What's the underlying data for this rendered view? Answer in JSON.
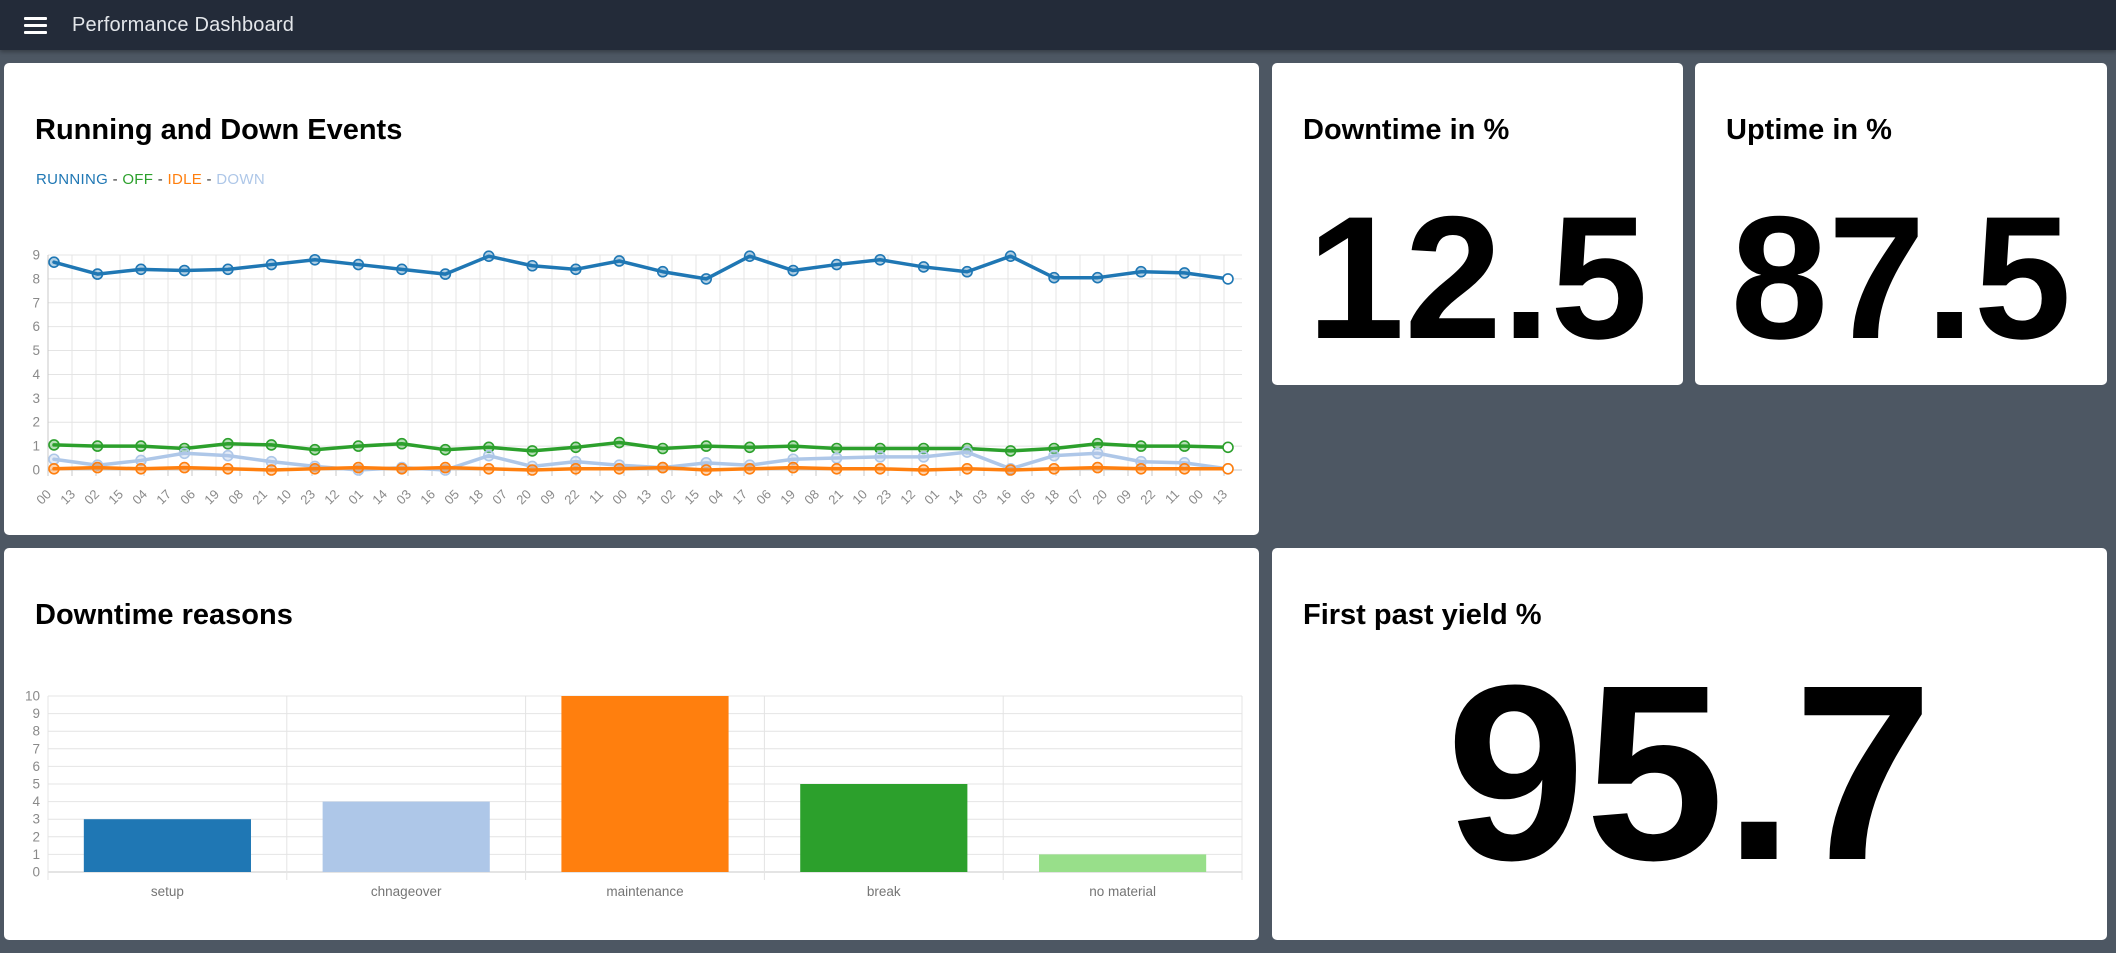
{
  "navbar": {
    "title": "Performance Dashboard",
    "menu_icon": "hamburger-icon"
  },
  "colors": {
    "background": "#4d5763",
    "navbar": "#232b39",
    "card": "#ffffff",
    "running": "#1f77b4",
    "off": "#2ca02c",
    "idle": "#ff7f0e",
    "down": "#aec7e8",
    "no_material": "#98df8a",
    "grid": "#e4e4e4",
    "axis": "#c8c8c8",
    "tick_label": "#8a8a8a",
    "category_label": "#757575"
  },
  "cards": {
    "events": {
      "title": "Running and Down Events"
    },
    "downtime": {
      "title": "Downtime in %",
      "value": "12.5"
    },
    "uptime": {
      "title": "Uptime in %",
      "value": "87.5"
    },
    "reasons": {
      "title": "Downtime reasons"
    },
    "fpy": {
      "title": "First past yield %",
      "value": "95.7"
    }
  },
  "legend": {
    "separator": " - ",
    "items": [
      {
        "label": "RUNNING",
        "color": "#1f77b4"
      },
      {
        "label": "OFF",
        "color": "#2ca02c"
      },
      {
        "label": "IDLE",
        "color": "#ff7f0e"
      },
      {
        "label": "DOWN",
        "color": "#aec7e8"
      }
    ]
  },
  "chart_data": [
    {
      "type": "line",
      "title": "Running and Down Events",
      "ylim": [
        0,
        9
      ],
      "y_ticks": [
        0,
        1,
        2,
        3,
        4,
        5,
        6,
        7,
        8,
        9
      ],
      "grid": true,
      "legend_position": "top",
      "x_tick_labels": [
        "00",
        "13",
        "02",
        "15",
        "04",
        "17",
        "06",
        "19",
        "08",
        "21",
        "10",
        "23",
        "12",
        "01",
        "14",
        "03",
        "16",
        "05",
        "18",
        "07",
        "20",
        "09",
        "22",
        "11",
        "00",
        "13",
        "02",
        "15",
        "04",
        "17",
        "06",
        "19",
        "08",
        "21",
        "10",
        "23",
        "12",
        "01",
        "14",
        "03",
        "16",
        "05",
        "18",
        "07",
        "20",
        "09",
        "22",
        "11",
        "00",
        "13"
      ],
      "series": [
        {
          "name": "RUNNING",
          "color": "#1f77b4",
          "values": [
            8.7,
            8.2,
            8.4,
            8.35,
            8.4,
            8.6,
            8.8,
            8.6,
            8.4,
            8.2,
            8.95,
            8.55,
            8.4,
            8.75,
            8.3,
            8.0,
            8.95,
            8.35,
            8.6,
            8.8,
            8.5,
            8.3,
            8.95,
            8.05,
            8.05,
            8.3,
            8.25,
            8.0
          ]
        },
        {
          "name": "OFF",
          "color": "#2ca02c",
          "values": [
            1.05,
            1.0,
            1.0,
            0.9,
            1.1,
            1.05,
            0.85,
            1.0,
            1.1,
            0.85,
            0.95,
            0.8,
            0.95,
            1.15,
            0.9,
            1.0,
            0.95,
            1.0,
            0.9,
            0.9,
            0.9,
            0.9,
            0.8,
            0.9,
            1.1,
            1.0,
            1.0,
            0.95
          ]
        },
        {
          "name": "DOWN",
          "color": "#aec7e8",
          "values": [
            0.45,
            0.2,
            0.4,
            0.7,
            0.6,
            0.35,
            0.15,
            0.0,
            0.1,
            0.0,
            0.6,
            0.15,
            0.35,
            0.2,
            0.1,
            0.3,
            0.2,
            0.45,
            0.5,
            0.55,
            0.55,
            0.75,
            0.05,
            0.6,
            0.7,
            0.35,
            0.3,
            0.05
          ]
        },
        {
          "name": "IDLE",
          "color": "#ff7f0e",
          "values": [
            0.05,
            0.1,
            0.05,
            0.1,
            0.05,
            0.0,
            0.05,
            0.1,
            0.05,
            0.1,
            0.05,
            0.0,
            0.05,
            0.05,
            0.1,
            0.0,
            0.05,
            0.1,
            0.05,
            0.05,
            0.0,
            0.05,
            0.0,
            0.05,
            0.1,
            0.05,
            0.05,
            0.05
          ]
        }
      ]
    },
    {
      "type": "bar",
      "title": "Downtime reasons",
      "categories": [
        "setup",
        "chnageover",
        "maintenance",
        "break",
        "no material"
      ],
      "values": [
        3,
        4,
        10,
        5,
        1
      ],
      "bar_colors": [
        "#1f77b4",
        "#aec7e8",
        "#ff7f0e",
        "#2ca02c",
        "#98df8a"
      ],
      "ylim": [
        0,
        10
      ],
      "y_ticks": [
        0,
        1,
        2,
        3,
        4,
        5,
        6,
        7,
        8,
        9,
        10
      ],
      "grid": true,
      "xlabel": "",
      "ylabel": ""
    }
  ]
}
